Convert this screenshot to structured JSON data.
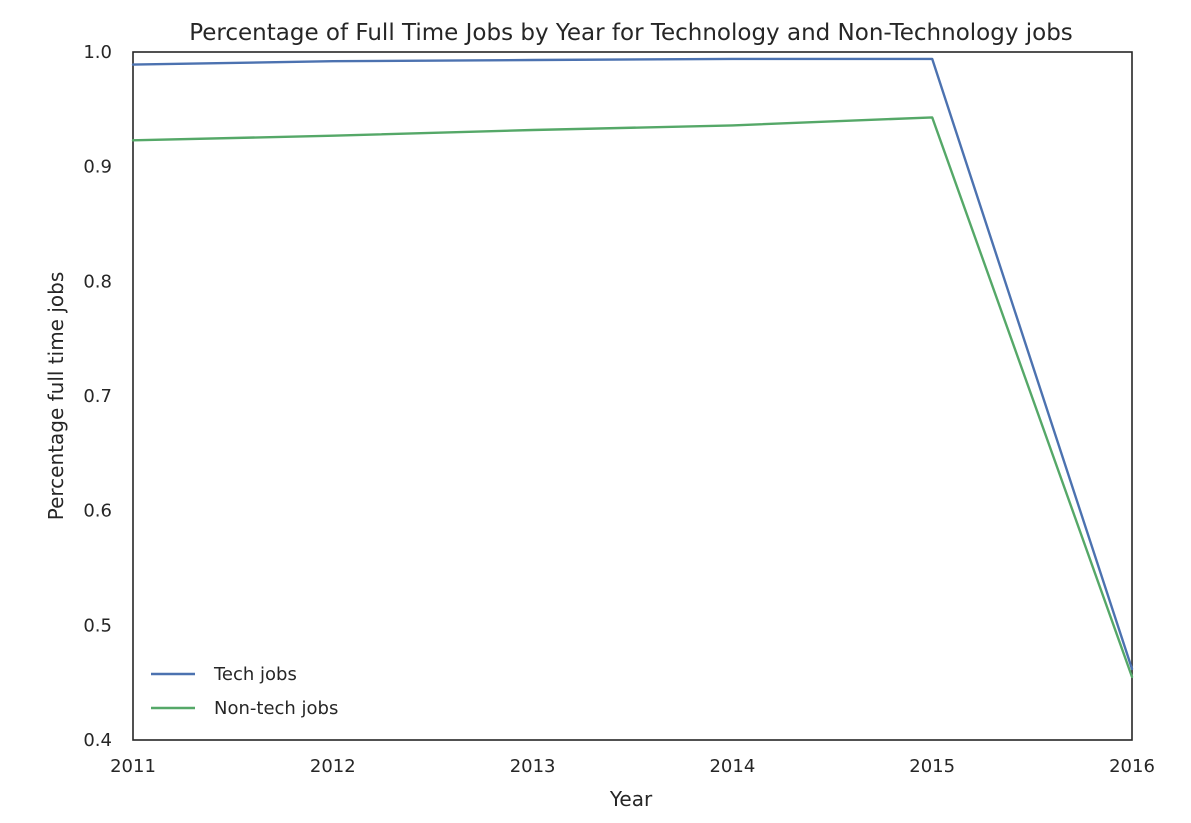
{
  "chart_data": {
    "type": "line",
    "title": "Percentage of Full Time Jobs by Year for Technology and Non-Technology jobs",
    "xlabel": "Year",
    "ylabel": "Percentage full time jobs",
    "x": [
      2011,
      2012,
      2013,
      2014,
      2015,
      2016
    ],
    "xlim": [
      2011,
      2016
    ],
    "ylim": [
      0.4,
      1.0
    ],
    "xticks": [
      "2011",
      "2012",
      "2013",
      "2014",
      "2015",
      "2016"
    ],
    "yticks": [
      "0.4",
      "0.5",
      "0.6",
      "0.7",
      "0.8",
      "0.9",
      "1.0"
    ],
    "grid": false,
    "legend_position": "lower-left",
    "series": [
      {
        "name": "Tech jobs",
        "color": "#4c72b0",
        "values": [
          0.989,
          0.992,
          0.993,
          0.994,
          0.994,
          0.462
        ]
      },
      {
        "name": "Non-tech jobs",
        "color": "#55a868",
        "values": [
          0.923,
          0.927,
          0.932,
          0.936,
          0.943,
          0.455
        ]
      }
    ]
  }
}
